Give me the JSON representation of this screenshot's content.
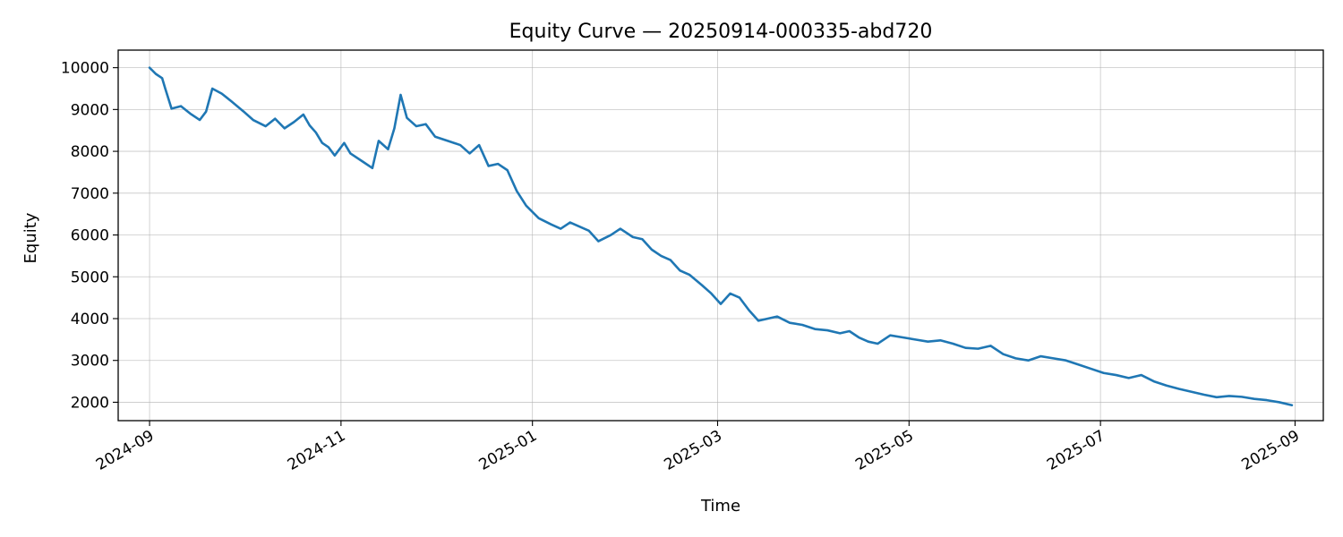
{
  "chart_data": {
    "type": "line",
    "title": "Equity Curve — 20250914-000335-abd720",
    "xlabel": "Time",
    "ylabel": "Equity",
    "grid": true,
    "x_ticks": [
      "2024-09",
      "2024-11",
      "2025-01",
      "2025-03",
      "2025-05",
      "2025-07",
      "2025-09"
    ],
    "x_tick_dates": [
      "2024-09-01",
      "2024-11-01",
      "2025-01-01",
      "2025-03-01",
      "2025-05-01",
      "2025-07-01",
      "2025-09-01"
    ],
    "y_ticks": [
      2000,
      3000,
      4000,
      5000,
      6000,
      7000,
      8000,
      9000,
      10000
    ],
    "xlim": [
      "2024-08-22",
      "2025-09-10"
    ],
    "ylim": [
      1560,
      10420
    ],
    "series": [
      {
        "color": "#1f77b4",
        "points": [
          [
            "2024-09-01",
            10000
          ],
          [
            "2024-09-03",
            9850
          ],
          [
            "2024-09-05",
            9750
          ],
          [
            "2024-09-06",
            9500
          ],
          [
            "2024-09-08",
            9020
          ],
          [
            "2024-09-11",
            9080
          ],
          [
            "2024-09-14",
            8900
          ],
          [
            "2024-09-17",
            8750
          ],
          [
            "2024-09-19",
            8950
          ],
          [
            "2024-09-21",
            9500
          ],
          [
            "2024-09-24",
            9380
          ],
          [
            "2024-09-27",
            9200
          ],
          [
            "2024-10-01",
            8950
          ],
          [
            "2024-10-04",
            8750
          ],
          [
            "2024-10-08",
            8600
          ],
          [
            "2024-10-11",
            8780
          ],
          [
            "2024-10-14",
            8550
          ],
          [
            "2024-10-17",
            8700
          ],
          [
            "2024-10-20",
            8880
          ],
          [
            "2024-10-22",
            8620
          ],
          [
            "2024-10-24",
            8450
          ],
          [
            "2024-10-26",
            8200
          ],
          [
            "2024-10-28",
            8100
          ],
          [
            "2024-10-30",
            7900
          ],
          [
            "2024-11-02",
            8200
          ],
          [
            "2024-11-04",
            7950
          ],
          [
            "2024-11-08",
            7750
          ],
          [
            "2024-11-11",
            7600
          ],
          [
            "2024-11-13",
            8250
          ],
          [
            "2024-11-16",
            8050
          ],
          [
            "2024-11-18",
            8550
          ],
          [
            "2024-11-20",
            9350
          ],
          [
            "2024-11-22",
            8800
          ],
          [
            "2024-11-25",
            8600
          ],
          [
            "2024-11-28",
            8650
          ],
          [
            "2024-12-01",
            8350
          ],
          [
            "2024-12-05",
            8250
          ],
          [
            "2024-12-09",
            8150
          ],
          [
            "2024-12-12",
            7950
          ],
          [
            "2024-12-15",
            8150
          ],
          [
            "2024-12-18",
            7650
          ],
          [
            "2024-12-21",
            7700
          ],
          [
            "2024-12-24",
            7550
          ],
          [
            "2024-12-27",
            7050
          ],
          [
            "2024-12-30",
            6700
          ],
          [
            "2025-01-03",
            6400
          ],
          [
            "2025-01-07",
            6250
          ],
          [
            "2025-01-10",
            6150
          ],
          [
            "2025-01-13",
            6300
          ],
          [
            "2025-01-16",
            6200
          ],
          [
            "2025-01-19",
            6100
          ],
          [
            "2025-01-22",
            5850
          ],
          [
            "2025-01-26",
            6000
          ],
          [
            "2025-01-29",
            6150
          ],
          [
            "2025-02-02",
            5950
          ],
          [
            "2025-02-05",
            5900
          ],
          [
            "2025-02-08",
            5650
          ],
          [
            "2025-02-11",
            5500
          ],
          [
            "2025-02-14",
            5400
          ],
          [
            "2025-02-17",
            5150
          ],
          [
            "2025-02-20",
            5050
          ],
          [
            "2025-02-24",
            4800
          ],
          [
            "2025-02-27",
            4600
          ],
          [
            "2025-03-02",
            4350
          ],
          [
            "2025-03-05",
            4600
          ],
          [
            "2025-03-08",
            4500
          ],
          [
            "2025-03-11",
            4200
          ],
          [
            "2025-03-14",
            3950
          ],
          [
            "2025-03-17",
            4000
          ],
          [
            "2025-03-20",
            4050
          ],
          [
            "2025-03-24",
            3900
          ],
          [
            "2025-03-28",
            3850
          ],
          [
            "2025-04-01",
            3750
          ],
          [
            "2025-04-05",
            3720
          ],
          [
            "2025-04-09",
            3650
          ],
          [
            "2025-04-12",
            3700
          ],
          [
            "2025-04-15",
            3550
          ],
          [
            "2025-04-18",
            3450
          ],
          [
            "2025-04-21",
            3400
          ],
          [
            "2025-04-25",
            3600
          ],
          [
            "2025-04-29",
            3550
          ],
          [
            "2025-05-03",
            3500
          ],
          [
            "2025-05-07",
            3450
          ],
          [
            "2025-05-11",
            3480
          ],
          [
            "2025-05-15",
            3400
          ],
          [
            "2025-05-19",
            3300
          ],
          [
            "2025-05-23",
            3280
          ],
          [
            "2025-05-27",
            3350
          ],
          [
            "2025-05-31",
            3150
          ],
          [
            "2025-06-04",
            3050
          ],
          [
            "2025-06-08",
            3000
          ],
          [
            "2025-06-12",
            3100
          ],
          [
            "2025-06-16",
            3050
          ],
          [
            "2025-06-20",
            3000
          ],
          [
            "2025-06-24",
            2900
          ],
          [
            "2025-06-28",
            2800
          ],
          [
            "2025-07-02",
            2700
          ],
          [
            "2025-07-06",
            2650
          ],
          [
            "2025-07-10",
            2580
          ],
          [
            "2025-07-14",
            2650
          ],
          [
            "2025-07-18",
            2500
          ],
          [
            "2025-07-22",
            2400
          ],
          [
            "2025-07-26",
            2320
          ],
          [
            "2025-07-30",
            2250
          ],
          [
            "2025-08-03",
            2180
          ],
          [
            "2025-08-07",
            2120
          ],
          [
            "2025-08-11",
            2150
          ],
          [
            "2025-08-15",
            2130
          ],
          [
            "2025-08-19",
            2080
          ],
          [
            "2025-08-23",
            2050
          ],
          [
            "2025-08-27",
            2000
          ],
          [
            "2025-08-31",
            1930
          ]
        ]
      }
    ]
  }
}
